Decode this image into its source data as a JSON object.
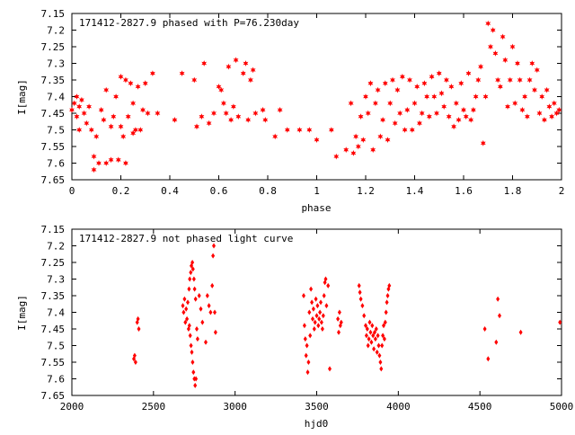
{
  "chart_data": [
    {
      "type": "scatter",
      "title": "171412-2827.9 phased with P=76.230day",
      "xlabel": "phase",
      "ylabel": "I[mag]",
      "xlim": [
        0,
        2
      ],
      "ylim": [
        7.15,
        7.65
      ],
      "y_inverted": true,
      "grid": false,
      "marker": "star",
      "color": "#ff0000",
      "x_ticks": [
        "0",
        "0.2",
        "0.4",
        "0.6",
        "0.8",
        "1",
        "1.2",
        "1.4",
        "1.6",
        "1.8",
        "2"
      ],
      "y_ticks": [
        "7.15",
        "7.2",
        "7.25",
        "7.3",
        "7.35",
        "7.4",
        "7.45",
        "7.5",
        "7.55",
        "7.6",
        "7.65"
      ],
      "points": [
        [
          0.0,
          7.44
        ],
        [
          0.01,
          7.42
        ],
        [
          0.02,
          7.46
        ],
        [
          0.02,
          7.4
        ],
        [
          0.03,
          7.43
        ],
        [
          0.04,
          7.41
        ],
        [
          0.05,
          7.45
        ],
        [
          0.03,
          7.5
        ],
        [
          0.06,
          7.48
        ],
        [
          0.07,
          7.43
        ],
        [
          0.08,
          7.5
        ],
        [
          0.09,
          7.58
        ],
        [
          0.09,
          7.62
        ],
        [
          0.1,
          7.52
        ],
        [
          0.11,
          7.6
        ],
        [
          0.12,
          7.44
        ],
        [
          0.13,
          7.47
        ],
        [
          0.14,
          7.6
        ],
        [
          0.14,
          7.38
        ],
        [
          0.16,
          7.59
        ],
        [
          0.16,
          7.49
        ],
        [
          0.17,
          7.46
        ],
        [
          0.18,
          7.4
        ],
        [
          0.19,
          7.59
        ],
        [
          0.2,
          7.49
        ],
        [
          0.2,
          7.34
        ],
        [
          0.21,
          7.52
        ],
        [
          0.22,
          7.35
        ],
        [
          0.22,
          7.6
        ],
        [
          0.23,
          7.46
        ],
        [
          0.24,
          7.36
        ],
        [
          0.25,
          7.51
        ],
        [
          0.25,
          7.42
        ],
        [
          0.26,
          7.5
        ],
        [
          0.27,
          7.37
        ],
        [
          0.28,
          7.5
        ],
        [
          0.29,
          7.44
        ],
        [
          0.3,
          7.36
        ],
        [
          0.31,
          7.45
        ],
        [
          0.33,
          7.33
        ],
        [
          0.35,
          7.45
        ],
        [
          0.42,
          7.47
        ],
        [
          0.45,
          7.33
        ],
        [
          0.5,
          7.35
        ],
        [
          0.51,
          7.49
        ],
        [
          0.53,
          7.46
        ],
        [
          0.54,
          7.3
        ],
        [
          0.56,
          7.48
        ],
        [
          0.58,
          7.45
        ],
        [
          0.6,
          7.37
        ],
        [
          0.61,
          7.38
        ],
        [
          0.62,
          7.42
        ],
        [
          0.63,
          7.45
        ],
        [
          0.64,
          7.31
        ],
        [
          0.65,
          7.47
        ],
        [
          0.66,
          7.43
        ],
        [
          0.67,
          7.29
        ],
        [
          0.68,
          7.46
        ],
        [
          0.7,
          7.33
        ],
        [
          0.71,
          7.3
        ],
        [
          0.72,
          7.47
        ],
        [
          0.73,
          7.35
        ],
        [
          0.74,
          7.32
        ],
        [
          0.75,
          7.45
        ],
        [
          0.78,
          7.44
        ],
        [
          0.79,
          7.47
        ],
        [
          0.83,
          7.52
        ],
        [
          0.85,
          7.44
        ],
        [
          0.88,
          7.5
        ],
        [
          0.93,
          7.5
        ],
        [
          0.97,
          7.5
        ],
        [
          1.0,
          7.53
        ],
        [
          1.06,
          7.5
        ],
        [
          1.08,
          7.58
        ],
        [
          1.12,
          7.56
        ],
        [
          1.14,
          7.42
        ],
        [
          1.15,
          7.57
        ],
        [
          1.16,
          7.52
        ],
        [
          1.17,
          7.55
        ],
        [
          1.18,
          7.46
        ],
        [
          1.19,
          7.53
        ],
        [
          1.2,
          7.4
        ],
        [
          1.21,
          7.45
        ],
        [
          1.22,
          7.36
        ],
        [
          1.23,
          7.56
        ],
        [
          1.24,
          7.42
        ],
        [
          1.25,
          7.38
        ],
        [
          1.26,
          7.52
        ],
        [
          1.27,
          7.47
        ],
        [
          1.28,
          7.36
        ],
        [
          1.29,
          7.53
        ],
        [
          1.3,
          7.42
        ],
        [
          1.31,
          7.35
        ],
        [
          1.32,
          7.48
        ],
        [
          1.33,
          7.38
        ],
        [
          1.34,
          7.45
        ],
        [
          1.35,
          7.34
        ],
        [
          1.36,
          7.5
        ],
        [
          1.37,
          7.44
        ],
        [
          1.38,
          7.35
        ],
        [
          1.39,
          7.5
        ],
        [
          1.4,
          7.42
        ],
        [
          1.41,
          7.37
        ],
        [
          1.42,
          7.48
        ],
        [
          1.43,
          7.45
        ],
        [
          1.44,
          7.36
        ],
        [
          1.45,
          7.4
        ],
        [
          1.46,
          7.46
        ],
        [
          1.47,
          7.34
        ],
        [
          1.48,
          7.4
        ],
        [
          1.49,
          7.45
        ],
        [
          1.5,
          7.33
        ],
        [
          1.51,
          7.39
        ],
        [
          1.52,
          7.43
        ],
        [
          1.53,
          7.35
        ],
        [
          1.54,
          7.46
        ],
        [
          1.55,
          7.37
        ],
        [
          1.56,
          7.49
        ],
        [
          1.57,
          7.42
        ],
        [
          1.58,
          7.47
        ],
        [
          1.59,
          7.36
        ],
        [
          1.6,
          7.44
        ],
        [
          1.61,
          7.46
        ],
        [
          1.62,
          7.33
        ],
        [
          1.63,
          7.47
        ],
        [
          1.64,
          7.44
        ],
        [
          1.65,
          7.4
        ],
        [
          1.66,
          7.35
        ],
        [
          1.67,
          7.31
        ],
        [
          1.68,
          7.54
        ],
        [
          1.69,
          7.4
        ],
        [
          1.7,
          7.18
        ],
        [
          1.71,
          7.25
        ],
        [
          1.72,
          7.2
        ],
        [
          1.73,
          7.27
        ],
        [
          1.74,
          7.35
        ],
        [
          1.75,
          7.37
        ],
        [
          1.76,
          7.22
        ],
        [
          1.77,
          7.29
        ],
        [
          1.78,
          7.43
        ],
        [
          1.79,
          7.35
        ],
        [
          1.8,
          7.25
        ],
        [
          1.81,
          7.42
        ],
        [
          1.82,
          7.3
        ],
        [
          1.83,
          7.35
        ],
        [
          1.84,
          7.44
        ],
        [
          1.85,
          7.4
        ],
        [
          1.86,
          7.46
        ],
        [
          1.87,
          7.35
        ],
        [
          1.88,
          7.3
        ],
        [
          1.89,
          7.38
        ],
        [
          1.9,
          7.32
        ],
        [
          1.91,
          7.45
        ],
        [
          1.92,
          7.4
        ],
        [
          1.93,
          7.47
        ],
        [
          1.94,
          7.38
        ],
        [
          1.95,
          7.43
        ],
        [
          1.96,
          7.46
        ],
        [
          1.97,
          7.42
        ],
        [
          1.98,
          7.45
        ],
        [
          1.99,
          7.44
        ]
      ]
    },
    {
      "type": "scatter",
      "title": "171412-2827.9 not phased light curve",
      "xlabel": "hjd0",
      "ylabel": "I[mag]",
      "xlim": [
        2000,
        5000
      ],
      "ylim": [
        7.15,
        7.65
      ],
      "y_inverted": true,
      "grid": false,
      "marker": "diamond",
      "color": "#ff0000",
      "x_ticks": [
        "2000",
        "2500",
        "3000",
        "3500",
        "4000",
        "4500",
        "5000"
      ],
      "y_ticks": [
        "7.15",
        "7.2",
        "7.25",
        "7.3",
        "7.35",
        "7.4",
        "7.45",
        "7.5",
        "7.55",
        "7.6",
        "7.65"
      ],
      "points": [
        [
          2380,
          7.54
        ],
        [
          2385,
          7.53
        ],
        [
          2390,
          7.55
        ],
        [
          2400,
          7.43
        ],
        [
          2405,
          7.42
        ],
        [
          2410,
          7.45
        ],
        [
          2680,
          7.38
        ],
        [
          2685,
          7.4
        ],
        [
          2690,
          7.36
        ],
        [
          2695,
          7.43
        ],
        [
          2700,
          7.39
        ],
        [
          2705,
          7.42
        ],
        [
          2710,
          7.37
        ],
        [
          2715,
          7.45
        ],
        [
          2718,
          7.33
        ],
        [
          2720,
          7.44
        ],
        [
          2722,
          7.3
        ],
        [
          2725,
          7.47
        ],
        [
          2728,
          7.28
        ],
        [
          2730,
          7.5
        ],
        [
          2732,
          7.26
        ],
        [
          2735,
          7.52
        ],
        [
          2738,
          7.25
        ],
        [
          2740,
          7.55
        ],
        [
          2742,
          7.27
        ],
        [
          2745,
          7.58
        ],
        [
          2748,
          7.3
        ],
        [
          2750,
          7.6
        ],
        [
          2752,
          7.33
        ],
        [
          2755,
          7.62
        ],
        [
          2758,
          7.36
        ],
        [
          2760,
          7.6
        ],
        [
          2765,
          7.45
        ],
        [
          2770,
          7.48
        ],
        [
          2780,
          7.35
        ],
        [
          2790,
          7.39
        ],
        [
          2800,
          7.43
        ],
        [
          2820,
          7.49
        ],
        [
          2830,
          7.35
        ],
        [
          2840,
          7.38
        ],
        [
          2850,
          7.4
        ],
        [
          2860,
          7.32
        ],
        [
          2865,
          7.23
        ],
        [
          2870,
          7.2
        ],
        [
          2875,
          7.4
        ],
        [
          2880,
          7.46
        ],
        [
          3420,
          7.35
        ],
        [
          3425,
          7.44
        ],
        [
          3430,
          7.48
        ],
        [
          3435,
          7.53
        ],
        [
          3440,
          7.5
        ],
        [
          3445,
          7.58
        ],
        [
          3450,
          7.55
        ],
        [
          3455,
          7.4
        ],
        [
          3460,
          7.47
        ],
        [
          3465,
          7.33
        ],
        [
          3470,
          7.37
        ],
        [
          3475,
          7.42
        ],
        [
          3480,
          7.39
        ],
        [
          3485,
          7.45
        ],
        [
          3490,
          7.43
        ],
        [
          3495,
          7.36
        ],
        [
          3500,
          7.41
        ],
        [
          3505,
          7.38
        ],
        [
          3510,
          7.44
        ],
        [
          3515,
          7.42
        ],
        [
          3520,
          7.4
        ],
        [
          3525,
          7.37
        ],
        [
          3530,
          7.43
        ],
        [
          3535,
          7.45
        ],
        [
          3540,
          7.41
        ],
        [
          3545,
          7.35
        ],
        [
          3550,
          7.31
        ],
        [
          3555,
          7.3
        ],
        [
          3560,
          7.38
        ],
        [
          3570,
          7.32
        ],
        [
          3580,
          7.57
        ],
        [
          3630,
          7.42
        ],
        [
          3635,
          7.46
        ],
        [
          3640,
          7.4
        ],
        [
          3645,
          7.44
        ],
        [
          3650,
          7.43
        ],
        [
          3760,
          7.32
        ],
        [
          3765,
          7.34
        ],
        [
          3770,
          7.36
        ],
        [
          3780,
          7.38
        ],
        [
          3790,
          7.41
        ],
        [
          3800,
          7.44
        ],
        [
          3805,
          7.47
        ],
        [
          3810,
          7.45
        ],
        [
          3815,
          7.5
        ],
        [
          3820,
          7.48
        ],
        [
          3825,
          7.43
        ],
        [
          3830,
          7.46
        ],
        [
          3835,
          7.49
        ],
        [
          3840,
          7.44
        ],
        [
          3845,
          7.47
        ],
        [
          3850,
          7.51
        ],
        [
          3855,
          7.46
        ],
        [
          3860,
          7.48
        ],
        [
          3865,
          7.45
        ],
        [
          3870,
          7.52
        ],
        [
          3875,
          7.47
        ],
        [
          3880,
          7.5
        ],
        [
          3885,
          7.53
        ],
        [
          3890,
          7.55
        ],
        [
          3895,
          7.57
        ],
        [
          3900,
          7.5
        ],
        [
          3905,
          7.47
        ],
        [
          3910,
          7.44
        ],
        [
          3915,
          7.48
        ],
        [
          3920,
          7.43
        ],
        [
          3925,
          7.4
        ],
        [
          3930,
          7.37
        ],
        [
          3935,
          7.35
        ],
        [
          3940,
          7.33
        ],
        [
          3945,
          7.32
        ],
        [
          4530,
          7.45
        ],
        [
          4550,
          7.54
        ],
        [
          4600,
          7.49
        ],
        [
          4610,
          7.36
        ],
        [
          4620,
          7.41
        ],
        [
          4750,
          7.46
        ],
        [
          4990,
          7.43
        ]
      ]
    }
  ]
}
